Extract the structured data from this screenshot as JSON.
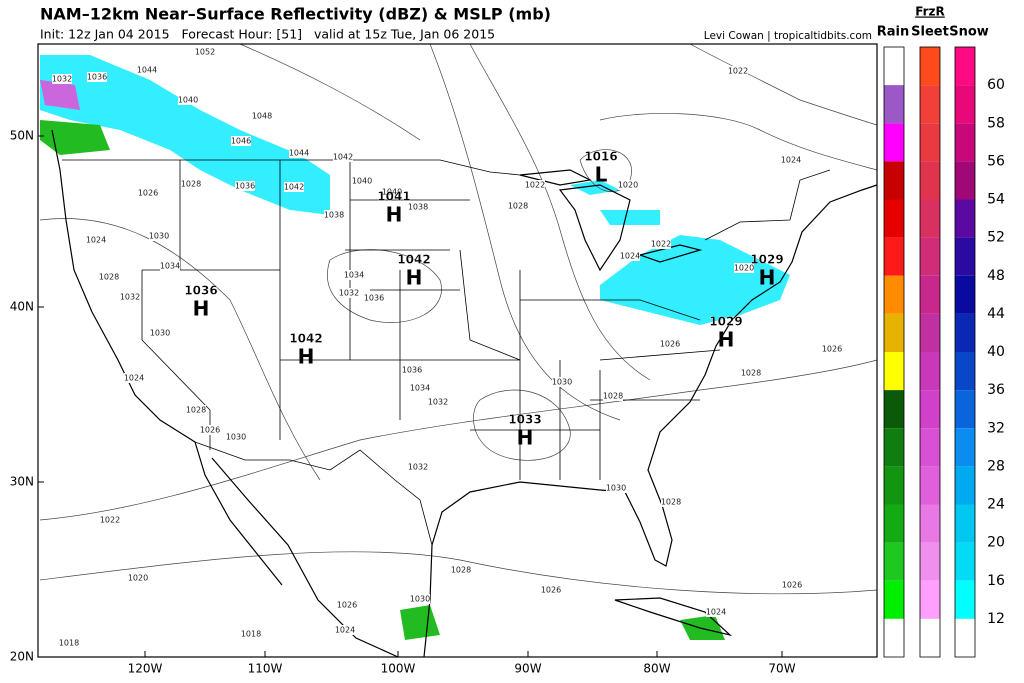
{
  "header": {
    "title": "NAM–12km Near–Surface Reflectivity (dBZ) & MSLP (mb)",
    "run_info": "Init: 12z Jan 04 2015   Forecast Hour: [51]   valid at 15z Tue, Jan 06 2015",
    "credit": "Levi Cowan | tropicaltidbits.com"
  },
  "map": {
    "lat_labels": [
      "50N",
      "40N",
      "30N",
      "20N"
    ],
    "lon_labels": [
      "120W",
      "110W",
      "100W",
      "90W",
      "80W",
      "70W"
    ],
    "pressure_centers": [
      {
        "letter": "L",
        "value": 1016
      },
      {
        "letter": "H",
        "value": 1041
      },
      {
        "letter": "H",
        "value": 1042
      },
      {
        "letter": "H",
        "value": 1036
      },
      {
        "letter": "H",
        "value": 1042
      },
      {
        "letter": "H",
        "value": 1033
      },
      {
        "letter": "H",
        "value": 1029
      },
      {
        "letter": "H",
        "value": 1029
      }
    ],
    "isobar_labels": [
      1052,
      1044,
      1032,
      1036,
      1040,
      1048,
      1046,
      1044,
      1042,
      1042,
      1040,
      1040,
      1038,
      1038,
      1036,
      1028,
      1026,
      1024,
      1030,
      1028,
      1032,
      1034,
      1030,
      1034,
      1036,
      1032,
      1028,
      1022,
      1020,
      1022,
      1024,
      1022,
      1024,
      1020,
      1026,
      1028,
      1026,
      1030,
      1028,
      1036,
      1034,
      1032,
      1028,
      1024,
      1026,
      1030,
      1032,
      1030,
      1028,
      1022,
      1020,
      1018,
      1018,
      1026,
      1024,
      1030,
      1028,
      1026,
      1026,
      1024
    ]
  },
  "colorbar": {
    "header_top": "FrzR",
    "headers": [
      "Rain",
      "Sleet",
      "Snow"
    ],
    "labels": [
      60,
      58,
      56,
      54,
      52,
      48,
      44,
      40,
      36,
      32,
      28,
      24,
      20,
      16,
      12
    ],
    "rain_colors": [
      "#ffffff",
      "#9b59c8",
      "#ff00ff",
      "#c80000",
      "#e60000",
      "#ff1a1a",
      "#ff8c00",
      "#e6b400",
      "#ffff00",
      "#0a5a0a",
      "#0f7d0f",
      "#129612",
      "#14aa14",
      "#1ec81e",
      "#00ee00",
      "#ffffff"
    ],
    "sleet_colors": [
      "#ff4a1c",
      "#f04038",
      "#e83a40",
      "#e0344c",
      "#d83060",
      "#d02c78",
      "#c8288c",
      "#c030a0",
      "#c838b8",
      "#d040c8",
      "#d850d4",
      "#e060dc",
      "#e878e4",
      "#f090ec",
      "#ffa0ff",
      "#ffffff"
    ],
    "snow_colors": [
      "#ff0a82",
      "#e8087a",
      "#c8087a",
      "#a00878",
      "#5a0aa0",
      "#2a0aa0",
      "#0a0aa0",
      "#0a28b4",
      "#0a46c8",
      "#0a64dc",
      "#0a8cf0",
      "#00aaf0",
      "#00c8f0",
      "#00dcf5",
      "#00ffff",
      "#ffffff"
    ]
  }
}
